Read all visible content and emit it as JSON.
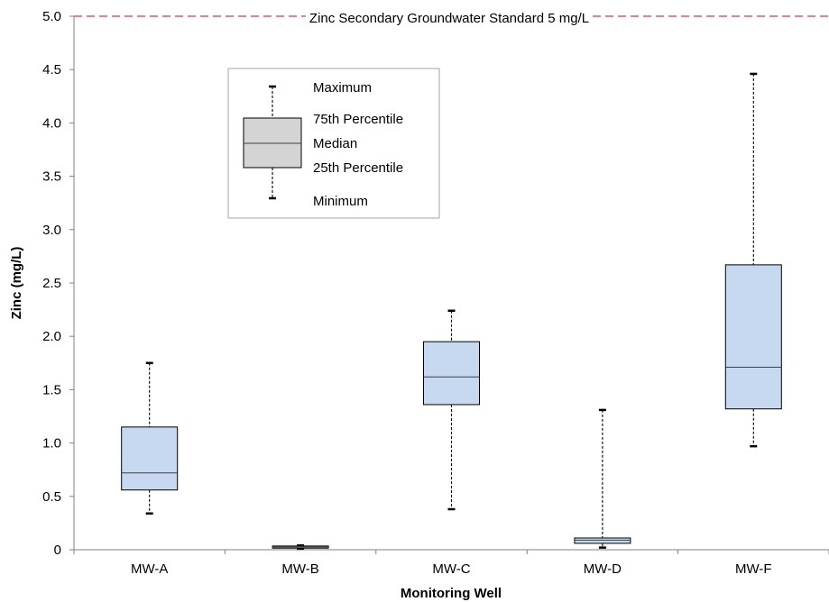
{
  "chart_data": {
    "type": "box",
    "xlabel": "Monitoring Well",
    "ylabel": "Zinc (mg/L)",
    "ylim": [
      0,
      5
    ],
    "yticks": [
      "0",
      "0.5",
      "1.0",
      "1.5",
      "2.0",
      "2.5",
      "3.0",
      "3.5",
      "4.0",
      "4.5",
      "5.0"
    ],
    "ytick_values": [
      0,
      0.5,
      1.0,
      1.5,
      2.0,
      2.5,
      3.0,
      3.5,
      4.0,
      4.5,
      5.0
    ],
    "categories": [
      "MW-A",
      "MW-B",
      "MW-C",
      "MW-D",
      "MW-F"
    ],
    "boxes": [
      {
        "category": "MW-A",
        "min": 0.34,
        "q1": 0.56,
        "median": 0.72,
        "q3": 1.15,
        "max": 1.75
      },
      {
        "category": "MW-B",
        "min": 0.01,
        "q1": 0.015,
        "median": 0.025,
        "q3": 0.035,
        "max": 0.04
      },
      {
        "category": "MW-C",
        "min": 0.38,
        "q1": 1.36,
        "median": 1.62,
        "q3": 1.95,
        "max": 2.24
      },
      {
        "category": "MW-D",
        "min": 0.02,
        "q1": 0.06,
        "median": 0.09,
        "q3": 0.11,
        "max": 1.31
      },
      {
        "category": "MW-F",
        "min": 0.97,
        "q1": 1.32,
        "median": 1.71,
        "q3": 2.67,
        "max": 4.46
      }
    ],
    "reference_line": {
      "value": 5.0,
      "label": "Zinc Secondary Groundwater Standard 5 mg/L",
      "color": "#e8303a",
      "style": "dashed"
    },
    "box_fill": "#c6d9f1",
    "grid": false,
    "legend": {
      "placement": "top-left",
      "entries": [
        "Maximum",
        "75th Percentile",
        "Median",
        "25th Percentile",
        "Minimum"
      ],
      "box_fill": "#d4d4d4"
    }
  }
}
